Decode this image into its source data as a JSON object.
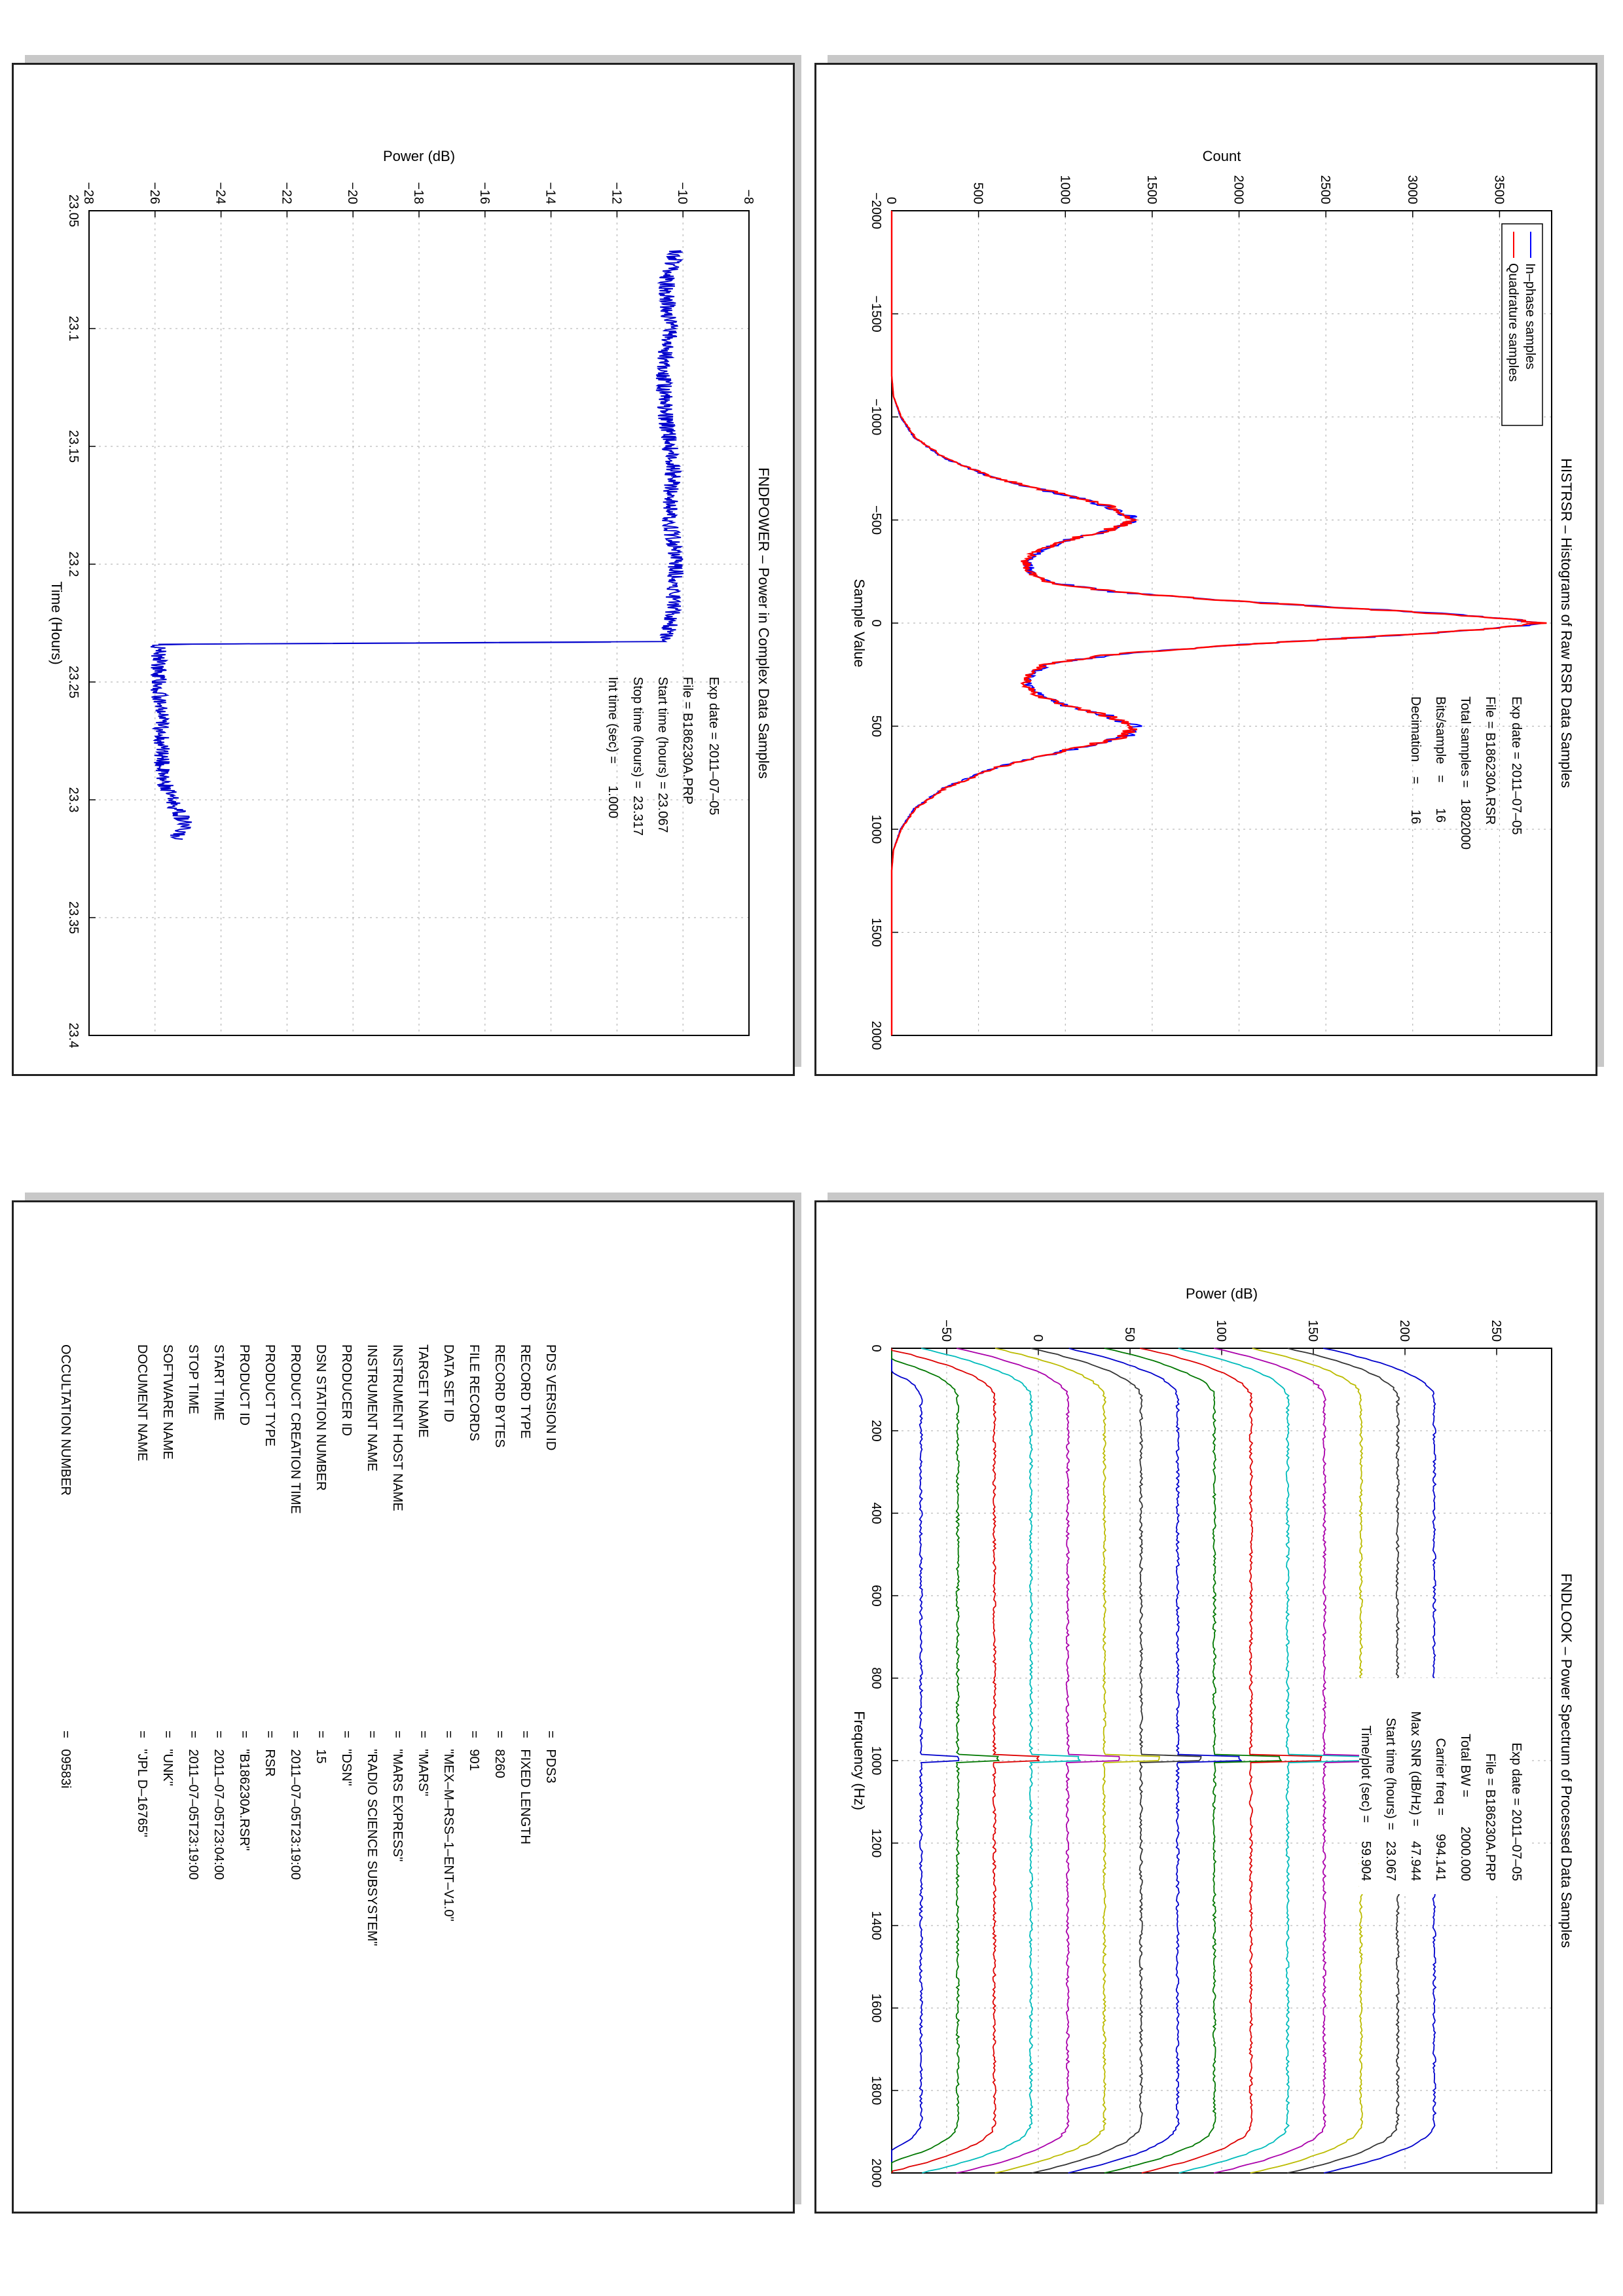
{
  "histogram": {
    "title": "HISTRSR – Histograms of Raw RSR Data Samples",
    "xlabel": "Sample Value",
    "ylabel": "Count",
    "info_lines": [
      "Exp date = 2011–07–05",
      "File = B186230A.RSR",
      "Total samples =   1802000",
      "Bits/sample   =       16",
      "Decimation    =       16"
    ],
    "colors": {
      "inphase": "#0000ff",
      "quadrature": "#ff0000"
    }
  },
  "power": {
    "title": "FNDPOWER – Power in Complex Data Samples",
    "xlabel": "Time (Hours)",
    "ylabel": "Power (dB)",
    "info_lines": [
      "Exp date = 2011–07–05",
      "File = B186230A.PRP",
      "Start time (hours) = 23.067",
      "Stop time (hours) =  23.317",
      "Int time (sec) =      1.000"
    ],
    "colors": {
      "line": "#0000cc"
    }
  },
  "spectrum": {
    "title": "FNDLOOK – Power Spectrum of Processed Data Samples",
    "xlabel": "Frequency (Hz)",
    "ylabel": "Power (dB)",
    "info_lines": [
      "Exp date = 2011–07–05",
      "File = B186230A.PRP",
      "Total BW =        2000.000",
      "Carrier freq =     994.141",
      "Max SNR (dB/Hz) =    47.944",
      "Start time (hours) =   23.067",
      "Time/plot (sec) =     59.904"
    ]
  },
  "metadata": {
    "rows": [
      {
        "key": "PDS VERSION ID",
        "value": "=   PDS3"
      },
      {
        "key": "RECORD TYPE",
        "value": "=   FIXED LENGTH"
      },
      {
        "key": "RECORD BYTES",
        "value": "=   8260"
      },
      {
        "key": "FILE RECORDS",
        "value": "=   901"
      },
      {
        "key": "DATA SET ID",
        "value": "=   \"MEX–M–RSS–1–ENT–V1.0\""
      },
      {
        "key": "TARGET NAME",
        "value": "=   \"MARS\""
      },
      {
        "key": "INSTRUMENT HOST NAME",
        "value": "=   \"MARS EXPRESS\""
      },
      {
        "key": "INSTRUMENT NAME",
        "value": "=   \"RADIO SCIENCE SUBSYSTEM\""
      },
      {
        "key": "PRODUCER ID",
        "value": "=   \"DSN\""
      },
      {
        "key": "DSN STATION NUMBER",
        "value": "=   15"
      },
      {
        "key": "PRODUCT CREATION TIME",
        "value": "=   2011–07–05T23:19:00"
      },
      {
        "key": "PRODUCT TYPE",
        "value": "=   RSR"
      },
      {
        "key": "PRODUCT ID",
        "value": "=   \"B186230A.RSR\""
      },
      {
        "key": "START TIME",
        "value": "=   2011–07–05T23:04:00"
      },
      {
        "key": "STOP TIME",
        "value": "=   2011–07–05T23:19:00"
      },
      {
        "key": "SOFTWARE NAME",
        "value": "=   \"UNK\""
      },
      {
        "key": "DOCUMENT NAME",
        "value": "=   \"JPL D–16765\""
      },
      {
        "key": "OCCULTATION NUMBER",
        "value": "=   09583i"
      }
    ]
  },
  "chart_data": [
    {
      "type": "line",
      "title": "HISTRSR – Histograms of Raw RSR Data Samples",
      "xlabel": "Sample Value",
      "ylabel": "Count",
      "xlim": [
        -2000,
        2000
      ],
      "ylim": [
        0,
        3800
      ],
      "x_ticks": [
        -2000,
        -1500,
        -1000,
        -500,
        0,
        500,
        1000,
        1500,
        2000
      ],
      "y_ticks": [
        0,
        500,
        1000,
        1500,
        2000,
        2500,
        3000,
        3500
      ],
      "grid": true,
      "legend": "top-left",
      "series": [
        {
          "name": "In–phase samples",
          "color": "#0000ff",
          "x": [
            -2000,
            -1200,
            -1100,
            -1000,
            -900,
            -800,
            -700,
            -600,
            -550,
            -500,
            -450,
            -400,
            -350,
            -300,
            -250,
            -200,
            -150,
            -100,
            -50,
            -25,
            0,
            25,
            50,
            100,
            150,
            200,
            250,
            300,
            350,
            400,
            450,
            500,
            550,
            600,
            700,
            800,
            900,
            1000,
            1100,
            1200,
            2000
          ],
          "y": [
            0,
            0,
            10,
            50,
            130,
            300,
            600,
            1100,
            1300,
            1400,
            1250,
            1000,
            850,
            780,
            800,
            900,
            1300,
            2100,
            3100,
            3500,
            3750,
            3500,
            3100,
            2100,
            1300,
            900,
            800,
            780,
            850,
            1000,
            1250,
            1400,
            1350,
            1100,
            600,
            300,
            130,
            50,
            10,
            0,
            0
          ]
        },
        {
          "name": "Quadrature samples",
          "color": "#ff0000",
          "x": [
            -2000,
            -1200,
            -1100,
            -1000,
            -900,
            -800,
            -700,
            -600,
            -550,
            -500,
            -450,
            -400,
            -350,
            -300,
            -250,
            -200,
            -150,
            -100,
            -50,
            -25,
            0,
            25,
            50,
            100,
            150,
            200,
            250,
            300,
            350,
            400,
            450,
            500,
            550,
            600,
            700,
            800,
            900,
            1000,
            1100,
            1200,
            2000
          ],
          "y": [
            0,
            0,
            10,
            55,
            135,
            310,
            610,
            1110,
            1310,
            1390,
            1240,
            990,
            840,
            770,
            790,
            890,
            1290,
            2090,
            3080,
            3480,
            3730,
            3480,
            3080,
            2090,
            1290,
            890,
            790,
            770,
            840,
            990,
            1240,
            1390,
            1340,
            1090,
            610,
            310,
            135,
            55,
            10,
            0,
            0
          ]
        }
      ]
    },
    {
      "type": "line",
      "title": "FNDPOWER – Power in Complex Data Samples",
      "xlabel": "Time (Hours)",
      "ylabel": "Power (dB)",
      "xlim": [
        23.05,
        23.4
      ],
      "ylim": [
        -28,
        -8
      ],
      "x_ticks": [
        23.05,
        23.1,
        23.15,
        23.2,
        23.25,
        23.3,
        23.35,
        23.4
      ],
      "y_ticks": [
        -28,
        -26,
        -24,
        -22,
        -20,
        -18,
        -16,
        -14,
        -12,
        -10,
        -8
      ],
      "grid": true,
      "series": [
        {
          "color": "#0000cc",
          "x": [
            23.067,
            23.08,
            23.1,
            23.12,
            23.14,
            23.16,
            23.18,
            23.2,
            23.22,
            23.233,
            23.234,
            23.25,
            23.27,
            23.29,
            23.3,
            23.31,
            23.317
          ],
          "y": [
            -10.2,
            -10.5,
            -10.4,
            -10.6,
            -10.5,
            -10.3,
            -10.4,
            -10.2,
            -10.3,
            -10.5,
            -25.9,
            -25.9,
            -25.8,
            -25.8,
            -25.5,
            -25.1,
            -25.4
          ]
        }
      ]
    },
    {
      "type": "line",
      "title": "FNDLOOK – Power Spectrum of Processed Data Samples",
      "xlabel": "Frequency (Hz)",
      "ylabel": "Power (dB)",
      "xlim": [
        0,
        2000
      ],
      "ylim": [
        -80,
        280
      ],
      "x_ticks": [
        0,
        200,
        400,
        600,
        800,
        1000,
        1200,
        1400,
        1600,
        1800,
        2000
      ],
      "y_ticks": [
        -50,
        0,
        50,
        100,
        150,
        200,
        250
      ],
      "grid": true,
      "carrier_hz": 994.141,
      "series": [
        {
          "color": "#0000cc",
          "level": -64
        },
        {
          "color": "#007700",
          "level": -44
        },
        {
          "color": "#dd0000",
          "level": -24
        },
        {
          "color": "#00bbbb",
          "level": -4
        },
        {
          "color": "#aa00aa",
          "level": 16
        },
        {
          "color": "#bbbb00",
          "level": 36
        },
        {
          "color": "#333333",
          "level": 56
        },
        {
          "color": "#0000cc",
          "level": 76
        },
        {
          "color": "#007700",
          "level": 96
        },
        {
          "color": "#dd0000",
          "level": 116
        },
        {
          "color": "#00bbbb",
          "level": 136
        },
        {
          "color": "#aa00aa",
          "level": 156
        },
        {
          "color": "#bbbb00",
          "level": 176
        },
        {
          "color": "#333333",
          "level": 196
        },
        {
          "color": "#0000cc",
          "level": 216
        }
      ]
    }
  ]
}
